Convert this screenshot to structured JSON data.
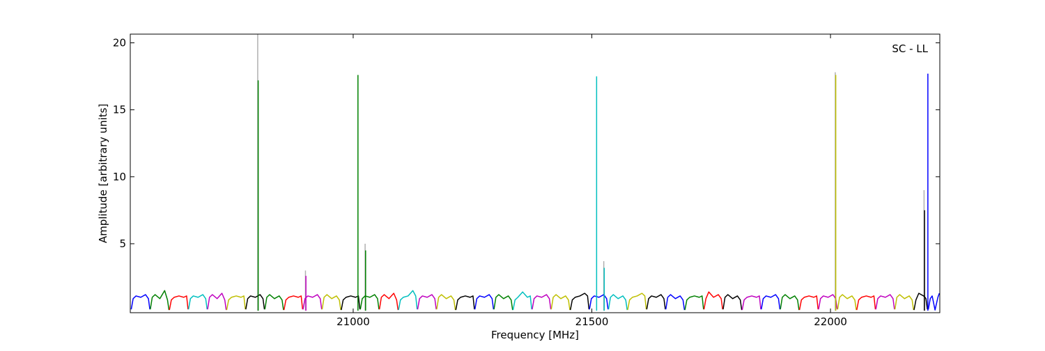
{
  "chart_data": {
    "type": "line",
    "xlabel": "Frequency [MHz]",
    "ylabel": "Amplitude [arbitrary units]",
    "annotation": "SC - LL",
    "xlim": [
      20533,
      22229
    ],
    "ylim": [
      -0.15,
      20.65
    ],
    "xticks": [
      21000,
      21500,
      22000
    ],
    "yticks": [
      5,
      10,
      15,
      20
    ],
    "grid": false,
    "series": [
      {
        "color": "#b0b0b0",
        "x": [
          20800,
          20800
        ],
        "values": [
          0,
          20.65
        ]
      },
      {
        "color": "#b0b0b0",
        "x": [
          20900,
          20900
        ],
        "values": [
          0,
          3.0
        ]
      },
      {
        "color": "#b0b0b0",
        "x": [
          21025,
          21025
        ],
        "values": [
          0,
          5.0
        ]
      },
      {
        "color": "#b0b0b0",
        "x": [
          21525,
          21525
        ],
        "values": [
          0,
          3.7
        ]
      },
      {
        "color": "#b0b0b0",
        "x": [
          22010,
          22010
        ],
        "values": [
          0,
          17.8
        ]
      },
      {
        "color": "#b0b0b0",
        "x": [
          22196,
          22196
        ],
        "values": [
          0,
          9.0
        ]
      },
      {
        "color": "#0000ff",
        "x": [
          20535,
          20539,
          20545,
          20555,
          20565,
          20571,
          20574
        ],
        "values": [
          0.1,
          0.9,
          1.1,
          1.0,
          1.2,
          0.9,
          0.1
        ]
      },
      {
        "color": "#008000",
        "x": [
          20575,
          20579,
          20585,
          20595,
          20605,
          20611,
          20614
        ],
        "values": [
          0.1,
          1.0,
          1.2,
          0.9,
          1.5,
          0.8,
          0.05
        ]
      },
      {
        "color": "#ff0000",
        "x": [
          20615,
          20619,
          20625,
          20635,
          20645,
          20651,
          20654
        ],
        "values": [
          0.05,
          0.8,
          1.0,
          1.1,
          1.0,
          1.1,
          0.1
        ]
      },
      {
        "color": "#00bfbf",
        "x": [
          20655,
          20659,
          20665,
          20675,
          20685,
          20691,
          20694
        ],
        "values": [
          0.1,
          0.9,
          1.1,
          1.0,
          1.2,
          0.9,
          0.1
        ]
      },
      {
        "color": "#bf00bf",
        "x": [
          20695,
          20699,
          20705,
          20715,
          20725,
          20731,
          20734
        ],
        "values": [
          0.1,
          1.0,
          1.2,
          0.9,
          1.3,
          0.8,
          0.05
        ]
      },
      {
        "color": "#bfbf00",
        "x": [
          20735,
          20739,
          20745,
          20755,
          20765,
          20771,
          20774
        ],
        "values": [
          0.05,
          0.8,
          1.0,
          1.1,
          1.0,
          1.1,
          0.1
        ]
      },
      {
        "color": "#000000",
        "x": [
          20775,
          20779,
          20785,
          20795,
          20805,
          20811,
          20814
        ],
        "values": [
          0.1,
          0.9,
          1.1,
          1.0,
          1.2,
          0.9,
          0.1
        ]
      },
      {
        "color": "#008000",
        "x": [
          20815,
          20819,
          20825,
          20835,
          20845,
          20851,
          20854
        ],
        "values": [
          0.1,
          1.0,
          1.2,
          0.9,
          1.1,
          0.8,
          0.05
        ]
      },
      {
        "color": "#ff0000",
        "x": [
          20855,
          20859,
          20865,
          20875,
          20885,
          20891,
          20894
        ],
        "values": [
          0.05,
          0.8,
          1.0,
          1.1,
          1.0,
          1.1,
          0.1
        ]
      },
      {
        "color": "#bf00bf",
        "x": [
          20895,
          20899,
          20905,
          20915,
          20925,
          20931,
          20934
        ],
        "values": [
          0.1,
          0.9,
          1.1,
          1.0,
          1.2,
          0.9,
          0.1
        ]
      },
      {
        "color": "#bfbf00",
        "x": [
          20935,
          20939,
          20945,
          20955,
          20965,
          20971,
          20974
        ],
        "values": [
          0.1,
          1.0,
          1.2,
          0.9,
          1.1,
          0.8,
          0.05
        ]
      },
      {
        "color": "#000000",
        "x": [
          20975,
          20979,
          20985,
          20995,
          21005,
          21011,
          21014
        ],
        "values": [
          0.05,
          0.8,
          1.0,
          1.1,
          1.0,
          1.1,
          0.1
        ]
      },
      {
        "color": "#008000",
        "x": [
          21015,
          21019,
          21025,
          21035,
          21045,
          21051,
          21054
        ],
        "values": [
          0.1,
          0.9,
          1.1,
          1.0,
          1.2,
          0.9,
          0.1
        ]
      },
      {
        "color": "#ff0000",
        "x": [
          21055,
          21059,
          21065,
          21075,
          21085,
          21091,
          21094
        ],
        "values": [
          0.1,
          1.0,
          1.2,
          0.9,
          1.3,
          0.8,
          0.05
        ]
      },
      {
        "color": "#00bfbf",
        "x": [
          21095,
          21099,
          21105,
          21115,
          21125,
          21131,
          21134
        ],
        "values": [
          0.05,
          0.8,
          1.0,
          1.1,
          1.5,
          1.1,
          0.1
        ]
      },
      {
        "color": "#bf00bf",
        "x": [
          21135,
          21139,
          21145,
          21155,
          21165,
          21171,
          21174
        ],
        "values": [
          0.1,
          0.9,
          1.1,
          1.0,
          1.2,
          0.9,
          0.1
        ]
      },
      {
        "color": "#bfbf00",
        "x": [
          21175,
          21179,
          21185,
          21195,
          21205,
          21211,
          21214
        ],
        "values": [
          0.1,
          1.0,
          1.2,
          0.9,
          1.1,
          0.8,
          0.05
        ]
      },
      {
        "color": "#000000",
        "x": [
          21215,
          21219,
          21225,
          21235,
          21245,
          21251,
          21254
        ],
        "values": [
          0.05,
          0.8,
          1.0,
          1.1,
          1.0,
          1.1,
          0.1
        ]
      },
      {
        "color": "#0000ff",
        "x": [
          21255,
          21259,
          21265,
          21275,
          21285,
          21291,
          21294
        ],
        "values": [
          0.1,
          0.9,
          1.1,
          1.0,
          1.2,
          0.9,
          0.1
        ]
      },
      {
        "color": "#008000",
        "x": [
          21295,
          21299,
          21305,
          21315,
          21325,
          21331,
          21334
        ],
        "values": [
          0.1,
          1.0,
          1.2,
          0.9,
          1.1,
          0.8,
          0.05
        ]
      },
      {
        "color": "#00bfbf",
        "x": [
          21335,
          21339,
          21345,
          21355,
          21365,
          21371,
          21374
        ],
        "values": [
          0.05,
          0.8,
          1.0,
          1.4,
          1.0,
          1.1,
          0.1
        ]
      },
      {
        "color": "#bf00bf",
        "x": [
          21375,
          21379,
          21385,
          21395,
          21405,
          21411,
          21414
        ],
        "values": [
          0.1,
          0.9,
          1.1,
          1.0,
          1.2,
          0.9,
          0.1
        ]
      },
      {
        "color": "#bfbf00",
        "x": [
          21415,
          21419,
          21425,
          21435,
          21445,
          21451,
          21454
        ],
        "values": [
          0.1,
          1.0,
          1.2,
          0.9,
          1.1,
          0.8,
          0.05
        ]
      },
      {
        "color": "#000000",
        "x": [
          21455,
          21459,
          21465,
          21475,
          21485,
          21491,
          21494
        ],
        "values": [
          0.05,
          0.8,
          1.0,
          1.1,
          1.3,
          1.1,
          0.1
        ]
      },
      {
        "color": "#0000ff",
        "x": [
          21495,
          21499,
          21505,
          21515,
          21525,
          21531,
          21534
        ],
        "values": [
          0.1,
          0.9,
          1.1,
          1.0,
          1.2,
          0.9,
          0.1
        ]
      },
      {
        "color": "#00bfbf",
        "x": [
          21535,
          21539,
          21545,
          21555,
          21565,
          21571,
          21574
        ],
        "values": [
          0.1,
          1.0,
          1.2,
          0.9,
          1.1,
          0.8,
          0.05
        ]
      },
      {
        "color": "#bfbf00",
        "x": [
          21575,
          21579,
          21585,
          21595,
          21605,
          21611,
          21614
        ],
        "values": [
          0.05,
          0.8,
          1.0,
          1.1,
          1.3,
          1.1,
          0.1
        ]
      },
      {
        "color": "#000000",
        "x": [
          21615,
          21619,
          21625,
          21635,
          21645,
          21651,
          21654
        ],
        "values": [
          0.1,
          0.9,
          1.1,
          1.0,
          1.2,
          0.9,
          0.1
        ]
      },
      {
        "color": "#0000ff",
        "x": [
          21655,
          21659,
          21665,
          21675,
          21685,
          21691,
          21694
        ],
        "values": [
          0.1,
          1.0,
          1.2,
          0.9,
          1.1,
          0.8,
          0.05
        ]
      },
      {
        "color": "#008000",
        "x": [
          21695,
          21699,
          21705,
          21715,
          21725,
          21731,
          21734
        ],
        "values": [
          0.05,
          0.8,
          1.0,
          1.1,
          1.0,
          1.1,
          0.1
        ]
      },
      {
        "color": "#ff0000",
        "x": [
          21735,
          21739,
          21745,
          21755,
          21765,
          21771,
          21774
        ],
        "values": [
          0.1,
          0.9,
          1.4,
          1.0,
          1.2,
          0.9,
          0.1
        ]
      },
      {
        "color": "#000000",
        "x": [
          21775,
          21779,
          21785,
          21795,
          21805,
          21811,
          21814
        ],
        "values": [
          0.1,
          1.0,
          1.2,
          0.9,
          1.1,
          0.8,
          0.05
        ]
      },
      {
        "color": "#bf00bf",
        "x": [
          21815,
          21819,
          21825,
          21835,
          21845,
          21851,
          21854
        ],
        "values": [
          0.05,
          0.8,
          1.0,
          1.1,
          1.0,
          1.1,
          0.1
        ]
      },
      {
        "color": "#0000ff",
        "x": [
          21855,
          21859,
          21865,
          21875,
          21885,
          21891,
          21894
        ],
        "values": [
          0.1,
          0.9,
          1.1,
          1.0,
          1.2,
          0.9,
          0.1
        ]
      },
      {
        "color": "#008000",
        "x": [
          21895,
          21899,
          21905,
          21915,
          21925,
          21931,
          21934
        ],
        "values": [
          0.1,
          1.0,
          1.2,
          0.9,
          1.1,
          0.8,
          0.05
        ]
      },
      {
        "color": "#ff0000",
        "x": [
          21935,
          21939,
          21945,
          21955,
          21965,
          21971,
          21974
        ],
        "values": [
          0.05,
          0.8,
          1.0,
          1.1,
          1.0,
          1.1,
          0.1
        ]
      },
      {
        "color": "#bf00bf",
        "x": [
          21975,
          21979,
          21985,
          21995,
          22005,
          22011,
          22014
        ],
        "values": [
          0.1,
          0.9,
          1.1,
          1.0,
          1.2,
          0.9,
          0.1
        ]
      },
      {
        "color": "#bfbf00",
        "x": [
          22015,
          22019,
          22025,
          22035,
          22045,
          22051,
          22054
        ],
        "values": [
          0.1,
          1.0,
          1.2,
          0.9,
          1.1,
          0.8,
          0.05
        ]
      },
      {
        "color": "#ff0000",
        "x": [
          22055,
          22059,
          22065,
          22075,
          22085,
          22091,
          22094
        ],
        "values": [
          0.05,
          0.8,
          1.0,
          1.1,
          1.0,
          1.1,
          0.1
        ]
      },
      {
        "color": "#bf00bf",
        "x": [
          22095,
          22099,
          22105,
          22115,
          22125,
          22131,
          22134
        ],
        "values": [
          0.1,
          0.9,
          1.1,
          1.0,
          1.2,
          0.9,
          0.1
        ]
      },
      {
        "color": "#bfbf00",
        "x": [
          22135,
          22139,
          22145,
          22155,
          22165,
          22171,
          22174
        ],
        "values": [
          0.1,
          1.0,
          1.2,
          0.9,
          1.1,
          0.8,
          0.05
        ]
      },
      {
        "color": "#000000",
        "x": [
          22175,
          22179,
          22185,
          22195,
          22198,
          22200,
          22203
        ],
        "values": [
          0.05,
          0.8,
          1.3,
          1.1,
          1.0,
          0.9,
          0.1
        ]
      },
      {
        "color": "#0000ff",
        "x": [
          22205,
          22209,
          22213,
          22219,
          22225,
          22228
        ],
        "values": [
          0.1,
          0.9,
          1.1,
          0.05,
          1.0,
          1.3
        ]
      },
      {
        "color": "#008000",
        "x": [
          20801,
          20801
        ],
        "values": [
          0,
          17.2
        ]
      },
      {
        "color": "#bf00bf",
        "x": [
          20901,
          20901
        ],
        "values": [
          0,
          2.6
        ]
      },
      {
        "color": "#008000",
        "x": [
          21010,
          21010
        ],
        "values": [
          0,
          17.6
        ]
      },
      {
        "color": "#008000",
        "x": [
          21026,
          21026
        ],
        "values": [
          0,
          4.5
        ]
      },
      {
        "color": "#00bfbf",
        "x": [
          21510,
          21510
        ],
        "values": [
          0,
          17.5
        ]
      },
      {
        "color": "#00bfbf",
        "x": [
          21526,
          21526
        ],
        "values": [
          0,
          3.2
        ]
      },
      {
        "color": "#bfbf00",
        "x": [
          22011,
          22011
        ],
        "values": [
          0,
          17.6
        ]
      },
      {
        "color": "#000000",
        "x": [
          22197,
          22197
        ],
        "values": [
          0,
          7.5
        ]
      },
      {
        "color": "#0000ff",
        "x": [
          22204,
          22204
        ],
        "values": [
          0,
          17.7
        ]
      }
    ]
  }
}
